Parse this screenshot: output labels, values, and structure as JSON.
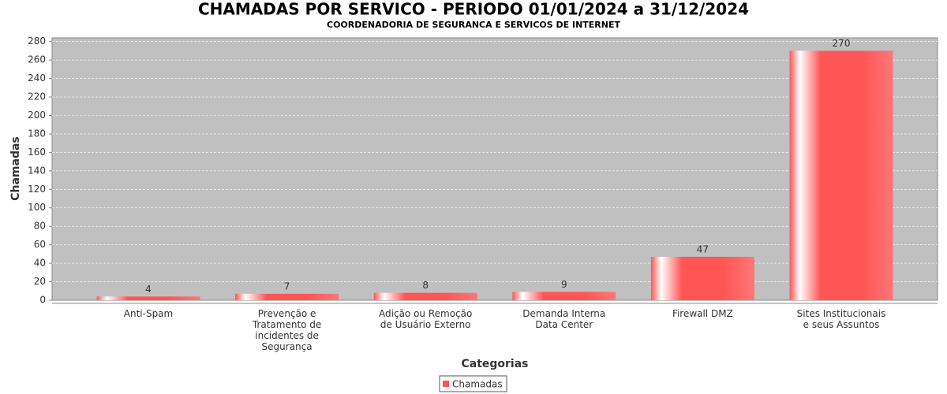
{
  "chart_data": {
    "type": "bar",
    "title": "CHAMADAS POR SERVICO - PERIODO 01/01/2024 a 31/12/2024",
    "subtitle": "COORDENADORIA DE SEGURANCA E SERVICOS DE INTERNET",
    "x_label": "Categorias",
    "y_label": "Chamadas",
    "categories": [
      "Anti-Spam",
      "Prevenção e\nTratamento de\nincidentes de\nSegurança",
      "Adição ou Remoção\nde Usuário Externo",
      "Demanda Interna\nData Center",
      "Firewall DMZ",
      "Sites Institucionais\ne seus Assuntos"
    ],
    "series": [
      {
        "name": "Chamadas",
        "color": "#ff5555",
        "values": [
          4,
          7,
          8,
          9,
          47,
          270
        ]
      }
    ],
    "ylim": [
      0,
      284
    ],
    "yticks": [
      0,
      20,
      40,
      60,
      80,
      100,
      120,
      140,
      160,
      180,
      200,
      220,
      240,
      260,
      280
    ],
    "grid": true
  }
}
